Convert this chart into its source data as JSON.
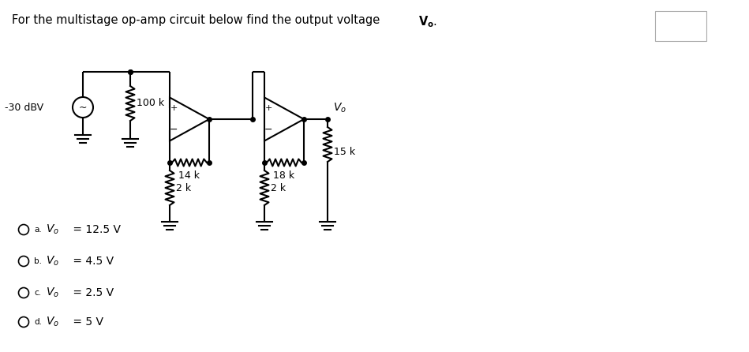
{
  "bg_color": "#ffffff",
  "line_color": "#000000",
  "lw": 1.5,
  "label_source": "-30 dBV",
  "label_r1": "100 k",
  "label_r2": "14 k",
  "label_r3": "2 k",
  "label_r4": "18 k",
  "label_r5": "2 k",
  "label_r6": "15 k",
  "title_plain": "For the multistage op-amp circuit below find the output voltage ",
  "title_vo": "$\\mathbf{V_o}$.",
  "answers": [
    [
      "a",
      "V_o",
      " = 12.5 V"
    ],
    [
      "b",
      "V_o",
      " = 4.5 V"
    ],
    [
      "c",
      "V_o",
      " = 2.5 V"
    ],
    [
      "d",
      "V_o",
      " = 5 V"
    ]
  ],
  "fig_w": 9.49,
  "fig_h": 4.46,
  "dpi": 100
}
